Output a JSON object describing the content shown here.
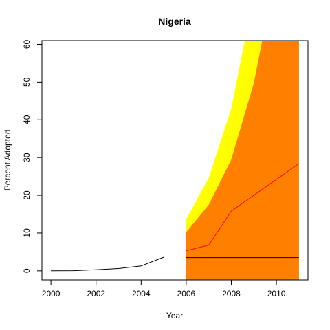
{
  "chart_data": {
    "type": "line",
    "title": "Nigeria",
    "xlabel": "Year",
    "ylabel": "Percent Adopted",
    "xlim": [
      1999.6,
      2011.4
    ],
    "ylim": [
      -2.4,
      61
    ],
    "x_ticks": [
      2000,
      2002,
      2004,
      2006,
      2008,
      2010
    ],
    "y_ticks": [
      0,
      10,
      20,
      30,
      40,
      50,
      60
    ],
    "grid": false,
    "legend": "none",
    "series": [
      {
        "role": "historical",
        "color": "#000000",
        "x": [
          2000,
          2001,
          2002,
          2003,
          2004,
          2005
        ],
        "y": [
          0.0,
          0.05,
          0.3,
          0.6,
          1.3,
          3.6
        ]
      },
      {
        "role": "forecast-mean",
        "color": "#ff0000",
        "x": [
          2006,
          2007,
          2008,
          2009,
          2010,
          2011
        ],
        "y": [
          5.3,
          6.8,
          15.8,
          20.0,
          24.2,
          28.4
        ]
      },
      {
        "role": "forecast-naive",
        "color": "#000000",
        "x": [
          2006,
          2011
        ],
        "y": [
          3.5,
          3.5
        ]
      }
    ],
    "bands": [
      {
        "color": "#ffff00",
        "x": [
          2006,
          2007,
          2008,
          2009,
          2010,
          2011
        ],
        "lower": [
          -2.4,
          -2.4,
          -2.4,
          -2.4,
          -2.4,
          -2.4
        ],
        "upper": [
          13.7,
          24.6,
          43.0,
          73.0,
          90.0,
          95.0
        ]
      },
      {
        "color": "#ff8000",
        "x": [
          2006,
          2007,
          2008,
          2009,
          2010,
          2011
        ],
        "lower": [
          -2.4,
          -2.4,
          -2.4,
          -2.4,
          -2.4,
          -2.4
        ],
        "upper": [
          10.2,
          17.5,
          29.5,
          49.8,
          80.0,
          90.0
        ]
      }
    ]
  }
}
